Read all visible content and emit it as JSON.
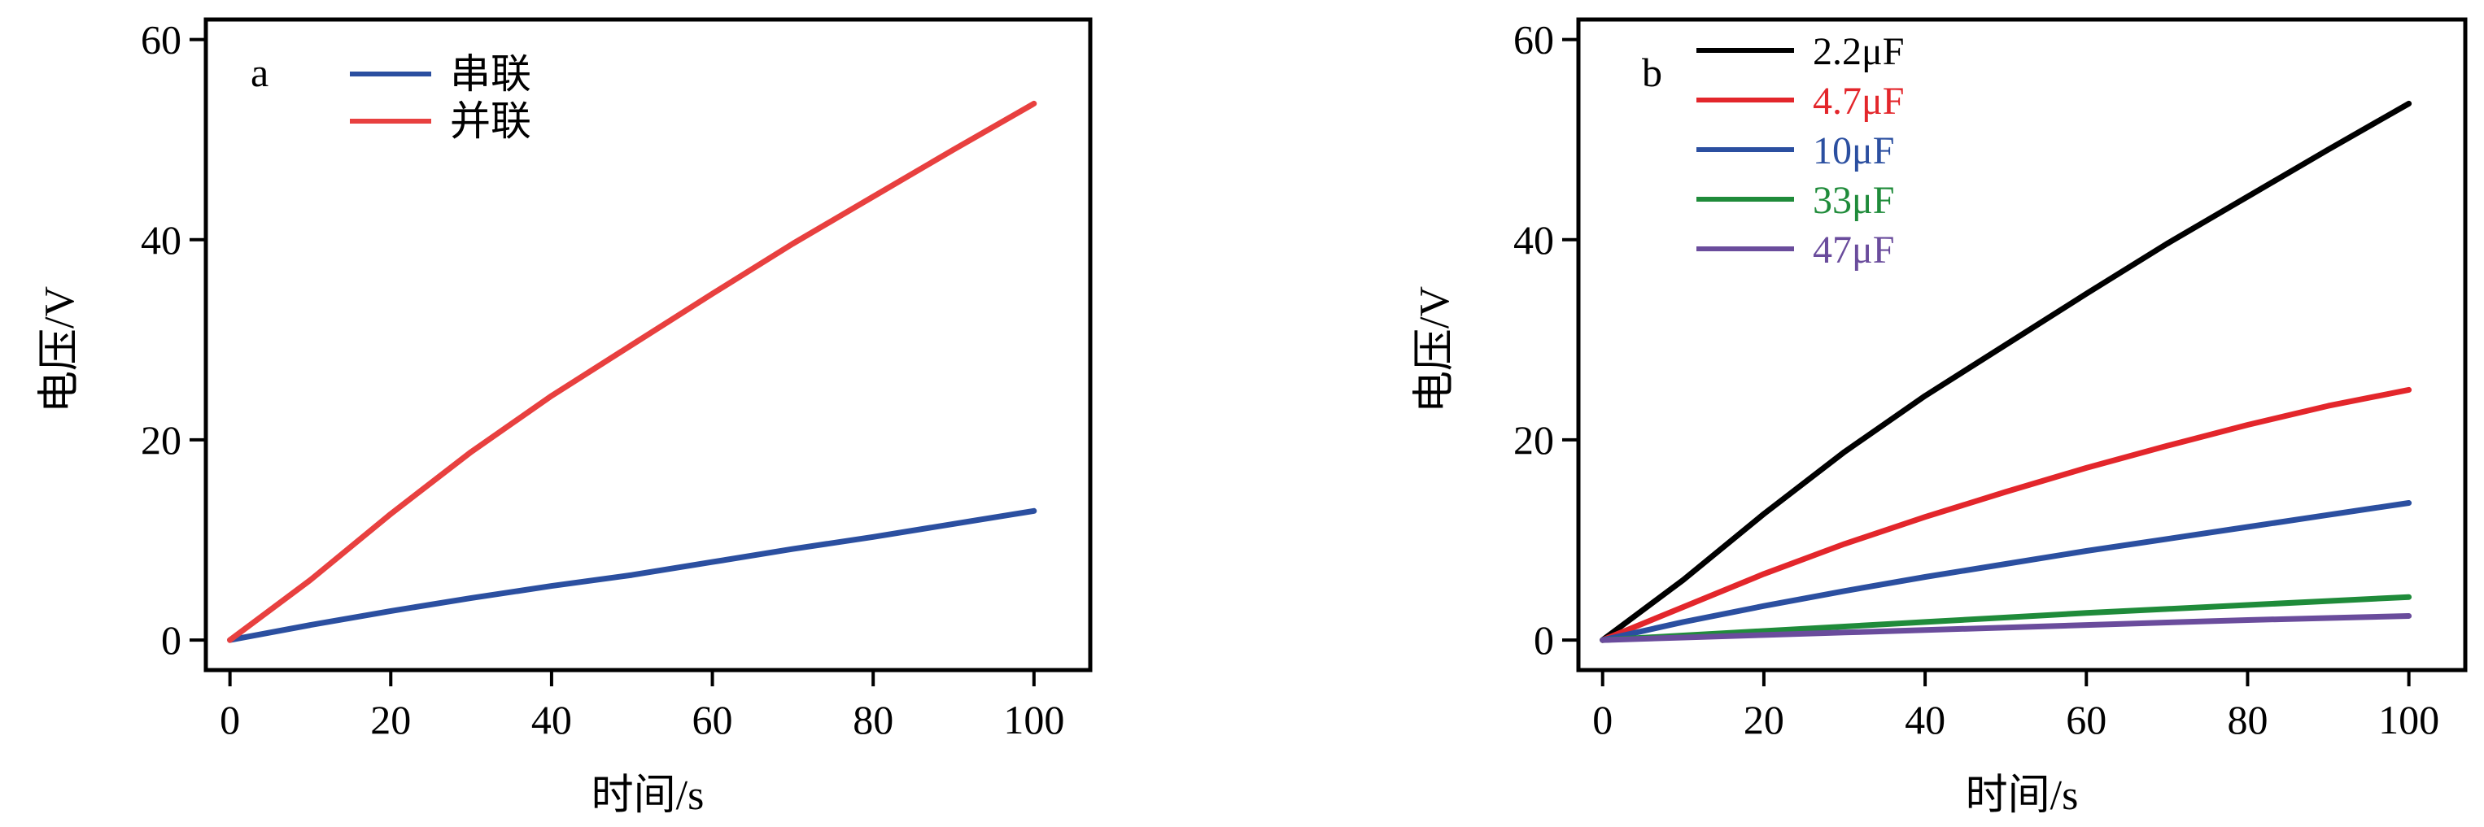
{
  "chart_data": [
    {
      "type": "line",
      "panel_label": "a",
      "xlabel": "时间/s",
      "ylabel": "电压/V",
      "xlim": [
        -3,
        107
      ],
      "ylim": [
        -3,
        62
      ],
      "xticks": [
        0,
        20,
        40,
        60,
        80,
        100
      ],
      "yticks": [
        0,
        20,
        40,
        60
      ],
      "grid": false,
      "legend_position": "top-left",
      "x": [
        0,
        10,
        20,
        30,
        40,
        50,
        60,
        70,
        80,
        90,
        100
      ],
      "series": [
        {
          "name": "串联",
          "color": "#2b4fa0",
          "values": [
            0,
            1.5,
            2.9,
            4.2,
            5.4,
            6.5,
            7.8,
            9.1,
            10.3,
            11.6,
            12.9
          ]
        },
        {
          "name": "并联",
          "color": "#e8403f",
          "values": [
            0,
            6.0,
            12.6,
            18.8,
            24.4,
            29.5,
            34.6,
            39.6,
            44.3,
            49.0,
            53.6
          ]
        }
      ]
    },
    {
      "type": "line",
      "panel_label": "b",
      "xlabel": "时间/s",
      "ylabel": "电压/V",
      "xlim": [
        -3,
        107
      ],
      "ylim": [
        -3,
        62
      ],
      "xticks": [
        0,
        20,
        40,
        60,
        80,
        100
      ],
      "yticks": [
        0,
        20,
        40,
        60
      ],
      "grid": false,
      "legend_position": "top-left",
      "x": [
        0,
        10,
        20,
        30,
        40,
        50,
        60,
        70,
        80,
        90,
        100
      ],
      "series": [
        {
          "name": "2.2μF",
          "color": "#000000",
          "values": [
            0,
            6.0,
            12.6,
            18.8,
            24.4,
            29.5,
            34.6,
            39.6,
            44.3,
            49.0,
            53.6
          ]
        },
        {
          "name": "4.7μF",
          "color": "#e3262b",
          "values": [
            0,
            3.3,
            6.6,
            9.6,
            12.3,
            14.8,
            17.2,
            19.4,
            21.5,
            23.4,
            25.0
          ]
        },
        {
          "name": "10μF",
          "color": "#2b4fa0",
          "values": [
            0,
            1.8,
            3.4,
            4.9,
            6.3,
            7.6,
            8.9,
            10.1,
            11.3,
            12.5,
            13.7
          ]
        },
        {
          "name": "33μF",
          "color": "#1f8b3a",
          "values": [
            0,
            0.45,
            0.9,
            1.35,
            1.8,
            2.25,
            2.7,
            3.1,
            3.5,
            3.9,
            4.3
          ]
        },
        {
          "name": "47μF",
          "color": "#6a4c9c",
          "values": [
            0,
            0.25,
            0.5,
            0.75,
            1.0,
            1.25,
            1.5,
            1.75,
            2.0,
            2.2,
            2.4
          ]
        }
      ]
    }
  ]
}
